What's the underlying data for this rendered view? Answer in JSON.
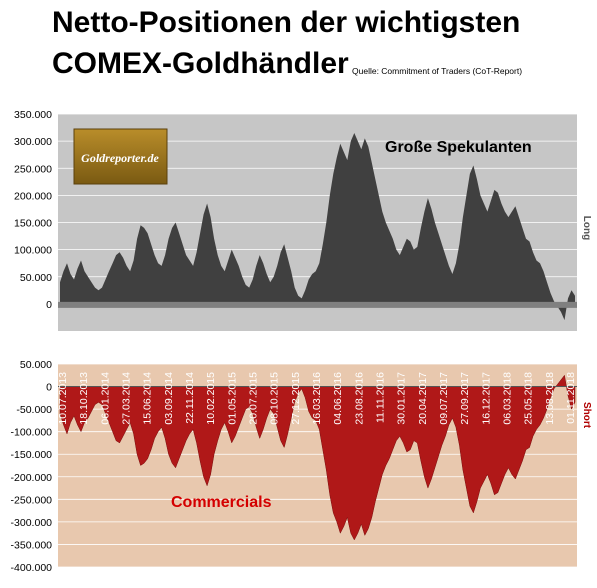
{
  "header": {
    "title_line1": "Netto-Positionen der wichtigsten",
    "title_line2": "COMEX-Goldhändler",
    "source": "Quelle: Commitment of Traders (CoT-Report)"
  },
  "logo": {
    "text": "Goldreporter.de"
  },
  "chart_data": [
    {
      "type": "area",
      "label": "Große Spekulanten",
      "side_label": "Long",
      "ylim": [
        -50000,
        350000
      ],
      "yticks": [
        "350.000",
        "300.000",
        "250.000",
        "200.000",
        "150.000",
        "100.000",
        "50.000",
        "0"
      ],
      "ytick_values": [
        350000,
        300000,
        250000,
        200000,
        150000,
        100000,
        50000,
        0
      ],
      "grid": true,
      "colors": {
        "background": "#c6c6c6",
        "fill": "#404040",
        "zero_band": "#808080"
      },
      "values": [
        40000,
        60000,
        75000,
        55000,
        45000,
        65000,
        80000,
        60000,
        50000,
        40000,
        30000,
        25000,
        30000,
        45000,
        60000,
        75000,
        90000,
        95000,
        85000,
        70000,
        60000,
        80000,
        120000,
        145000,
        140000,
        130000,
        110000,
        90000,
        75000,
        70000,
        90000,
        120000,
        140000,
        150000,
        130000,
        110000,
        90000,
        80000,
        70000,
        95000,
        130000,
        165000,
        185000,
        160000,
        120000,
        90000,
        70000,
        60000,
        80000,
        100000,
        85000,
        70000,
        50000,
        35000,
        30000,
        45000,
        70000,
        90000,
        75000,
        55000,
        40000,
        50000,
        70000,
        95000,
        110000,
        85000,
        60000,
        30000,
        15000,
        10000,
        25000,
        45000,
        55000,
        60000,
        75000,
        110000,
        150000,
        200000,
        240000,
        270000,
        295000,
        280000,
        265000,
        300000,
        315000,
        300000,
        285000,
        305000,
        290000,
        260000,
        230000,
        200000,
        170000,
        150000,
        135000,
        120000,
        100000,
        90000,
        105000,
        120000,
        115000,
        100000,
        105000,
        140000,
        170000,
        195000,
        175000,
        150000,
        130000,
        110000,
        90000,
        70000,
        55000,
        75000,
        110000,
        160000,
        200000,
        240000,
        255000,
        230000,
        200000,
        185000,
        170000,
        190000,
        210000,
        205000,
        185000,
        170000,
        160000,
        170000,
        180000,
        160000,
        140000,
        120000,
        115000,
        95000,
        80000,
        75000,
        60000,
        40000,
        20000,
        5000,
        -5000,
        -15000,
        -30000,
        10000,
        25000,
        15000
      ]
    },
    {
      "type": "area",
      "label": "Commercials",
      "side_label": "Short",
      "ylim": [
        -400000,
        50000
      ],
      "yticks": [
        "50.000",
        "0",
        "-50.000",
        "-100.000",
        "-150.000",
        "-200.000",
        "-250.000",
        "-300.000",
        "-350.000",
        "-400.000"
      ],
      "ytick_values": [
        50000,
        0,
        -50000,
        -100000,
        -150000,
        -200000,
        -250000,
        -300000,
        -350000,
        -400000
      ],
      "grid": true,
      "colors": {
        "background": "#e8c8ae",
        "fill": "#b01818"
      },
      "x_ticks": [
        "10.07.2013",
        "18.10.2013",
        "06.01.2014",
        "27.03.2014",
        "15.06.2014",
        "03.09.2014",
        "22.11.2014",
        "10.02.2015",
        "01.05.2015",
        "20.07.2015",
        "08.10.2015",
        "27.12.2015",
        "16.03.2016",
        "04.06.2016",
        "23.08.2016",
        "11.11.2016",
        "30.01.2017",
        "20.04.2017",
        "09.07.2017",
        "27.09.2017",
        "16.12.2017",
        "06.03.2018",
        "25.05.2018",
        "13.08.2018",
        "01.11.2018"
      ],
      "values": [
        -60000,
        -85000,
        -105000,
        -80000,
        -65000,
        -85000,
        -100000,
        -80000,
        -70000,
        -55000,
        -40000,
        -35000,
        -40000,
        -60000,
        -80000,
        -100000,
        -120000,
        -125000,
        -110000,
        -95000,
        -80000,
        -105000,
        -150000,
        -175000,
        -170000,
        -160000,
        -140000,
        -115000,
        -100000,
        -90000,
        -115000,
        -150000,
        -170000,
        -180000,
        -160000,
        -140000,
        -120000,
        -105000,
        -95000,
        -125000,
        -165000,
        -200000,
        -220000,
        -195000,
        -150000,
        -120000,
        -95000,
        -80000,
        -100000,
        -125000,
        -110000,
        -90000,
        -70000,
        -50000,
        -45000,
        -60000,
        -90000,
        -115000,
        -95000,
        -70000,
        -50000,
        -60000,
        -90000,
        -120000,
        -135000,
        -105000,
        -70000,
        -35000,
        -15000,
        -5000,
        -25000,
        -55000,
        -70000,
        -75000,
        -95000,
        -140000,
        -185000,
        -240000,
        -280000,
        -300000,
        -325000,
        -310000,
        -290000,
        -325000,
        -340000,
        -325000,
        -305000,
        -330000,
        -315000,
        -290000,
        -255000,
        -225000,
        -195000,
        -175000,
        -160000,
        -140000,
        -120000,
        -110000,
        -125000,
        -145000,
        -140000,
        -120000,
        -125000,
        -165000,
        -200000,
        -225000,
        -205000,
        -180000,
        -155000,
        -130000,
        -110000,
        -85000,
        -70000,
        -90000,
        -130000,
        -185000,
        -225000,
        -265000,
        -280000,
        -255000,
        -225000,
        -210000,
        -195000,
        -215000,
        -240000,
        -235000,
        -215000,
        -195000,
        -180000,
        -195000,
        -205000,
        -185000,
        -165000,
        -140000,
        -135000,
        -110000,
        -95000,
        -85000,
        -70000,
        -50000,
        -25000,
        -5000,
        5000,
        15000,
        25000,
        -20000,
        -50000,
        -35000
      ]
    }
  ]
}
